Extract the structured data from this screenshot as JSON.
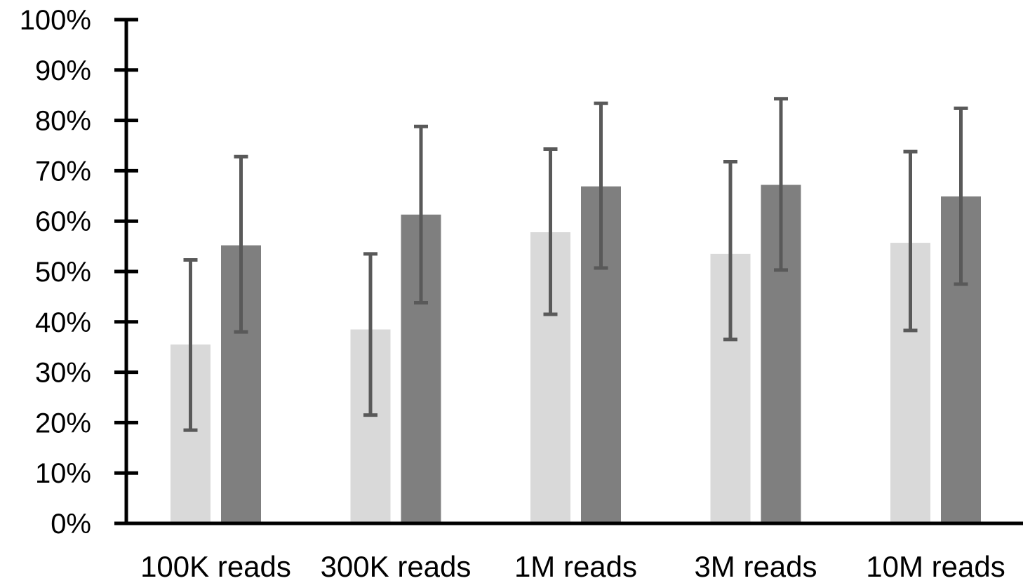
{
  "chart_data": {
    "type": "bar",
    "title": "",
    "xlabel": "",
    "ylabel": "",
    "categories": [
      "100K reads",
      "300K reads",
      "1M reads",
      "3M reads",
      "10M reads"
    ],
    "y_ticks": [
      "0%",
      "10%",
      "20%",
      "30%",
      "40%",
      "50%",
      "60%",
      "70%",
      "80%",
      "90%",
      "100%"
    ],
    "ylim": [
      0,
      100
    ],
    "grid": false,
    "legend": "none",
    "series": [
      {
        "color": "#d9d9d9",
        "values": [
          35.5,
          38.5,
          57.8,
          53.5,
          55.7
        ],
        "error_low": [
          18.5,
          21.5,
          41.5,
          36.5,
          38.3
        ],
        "error_high": [
          52.3,
          53.5,
          74.3,
          71.8,
          73.8
        ]
      },
      {
        "color": "#7f7f7f",
        "values": [
          55.2,
          61.3,
          66.9,
          67.2,
          64.9
        ],
        "error_low": [
          38.0,
          43.8,
          50.7,
          50.3,
          47.5
        ],
        "error_high": [
          72.8,
          78.8,
          83.4,
          84.3,
          82.4
        ]
      }
    ],
    "error_bar_color": "#595959",
    "axis_color": "#000000"
  }
}
